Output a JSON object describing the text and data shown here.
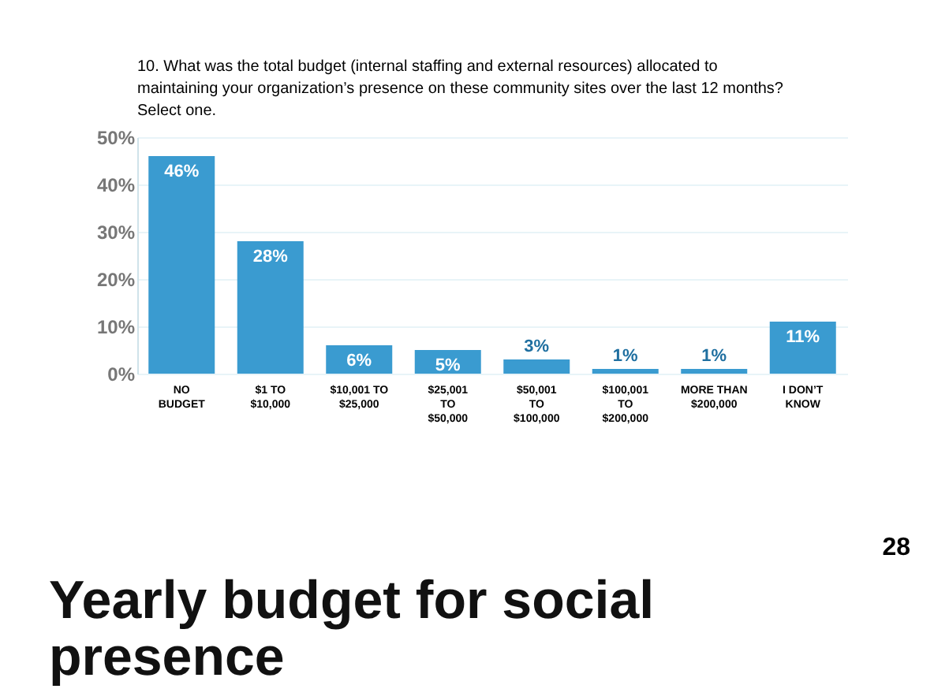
{
  "chart_data": {
    "type": "bar",
    "title": "Yearly budget for social presence",
    "subtitle": "10. What was the total budget (internal staffing and external resources) allocated to maintaining your organization’s presence on these community sites over the last 12 months? Select one.",
    "categories": [
      "NO\nBUDGET",
      "$1 TO\n$10,000",
      "$10,001 TO\n$25,000",
      "$25,001\nTO\n$50,000",
      "$50,001\nTO\n$100,000",
      "$100,001\nTO\n$200,000",
      "MORE THAN\n$200,000",
      "I DON’T\nKNOW"
    ],
    "values": [
      46,
      28,
      6,
      5,
      3,
      1,
      1,
      11
    ],
    "color": "#3a9bd0",
    "value_labels": [
      "46%",
      "28%",
      "6%",
      "5%",
      "3%",
      "1%",
      "1%",
      "11%"
    ],
    "ylim": [
      0,
      50
    ],
    "yticks": [
      {
        "value": 0,
        "label": "0%"
      },
      {
        "value": 10,
        "label": "10%"
      },
      {
        "value": 20,
        "label": "20%"
      },
      {
        "value": 30,
        "label": "30%"
      },
      {
        "value": 40,
        "label": "40%"
      },
      {
        "value": 50,
        "label": "50%"
      }
    ],
    "grid": "y",
    "annotations": [
      "28"
    ]
  }
}
